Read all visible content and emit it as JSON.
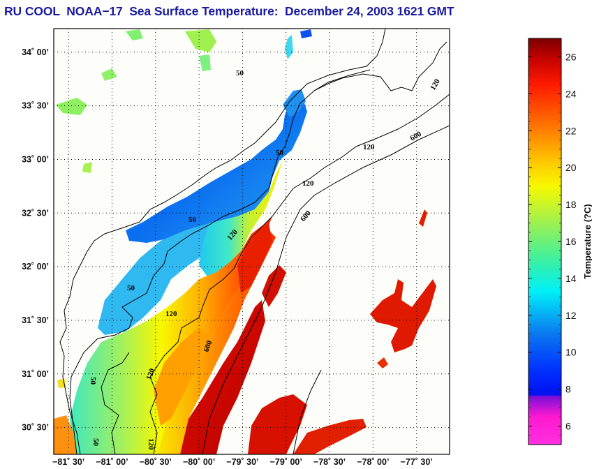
{
  "title": "RU COOL  NOAA−17  Sea Surface Temperature:  December 24, 2003 1621 GMT",
  "map": {
    "lat_ticks": [
      {
        "value": 34.0,
        "label": "34˚ 00’"
      },
      {
        "value": 33.5,
        "label": "33˚ 30’"
      },
      {
        "value": 33.0,
        "label": "33˚ 00’"
      },
      {
        "value": 32.5,
        "label": "32˚ 30’"
      },
      {
        "value": 32.0,
        "label": "32˚ 00’"
      },
      {
        "value": 31.5,
        "label": "31˚ 30’"
      },
      {
        "value": 31.0,
        "label": "31˚ 00’"
      },
      {
        "value": 30.5,
        "label": "30˚ 30’"
      }
    ],
    "lon_ticks": [
      {
        "value": -81.5,
        "label": "−81˚ 30’"
      },
      {
        "value": -81.0,
        "label": "−81˚ 00’"
      },
      {
        "value": -80.5,
        "label": "−80˚ 30’"
      },
      {
        "value": -80.0,
        "label": "−80˚ 00’"
      },
      {
        "value": -79.5,
        "label": "−79˚ 30’"
      },
      {
        "value": -79.0,
        "label": "−79˚ 00’"
      },
      {
        "value": -78.5,
        "label": "−78˚ 30’"
      },
      {
        "value": -78.0,
        "label": "−78˚ 00’"
      },
      {
        "value": -77.5,
        "label": "−77˚ 30’"
      }
    ],
    "lat_range": [
      30.25,
      34.22
    ],
    "lon_range": [
      -81.67,
      -77.12
    ],
    "contour_labels": [
      "50",
      "50",
      "50",
      "50",
      "50",
      "50",
      "120",
      "120",
      "120",
      "120",
      "120",
      "120",
      "120",
      "600",
      "600",
      "600"
    ]
  },
  "colorbar": {
    "label": "Temperature (?C)",
    "range": [
      5,
      27
    ],
    "ticks": [
      {
        "value": 26,
        "label": "26"
      },
      {
        "value": 24,
        "label": "24"
      },
      {
        "value": 22,
        "label": "22"
      },
      {
        "value": 20,
        "label": "20"
      },
      {
        "value": 18,
        "label": "18"
      },
      {
        "value": 16,
        "label": "16"
      },
      {
        "value": 14,
        "label": "14"
      },
      {
        "value": 12,
        "label": "12"
      },
      {
        "value": 10,
        "label": "10"
      },
      {
        "value": 8,
        "label": "8"
      },
      {
        "value": 6,
        "label": "6"
      }
    ],
    "minor_ticks": [
      5.5,
      6.5,
      7,
      7.5,
      8.5,
      9,
      9.5,
      10.5,
      11,
      11.5,
      12.5,
      13,
      13.5,
      14.5,
      15,
      15.5,
      16.5,
      17,
      17.5,
      18.5,
      19,
      19.5,
      20.5,
      21,
      21.5,
      22.5,
      23,
      23.5,
      24.5,
      25,
      25.5,
      26.5
    ],
    "stops": [
      {
        "value": 5,
        "color": "#ff30e0"
      },
      {
        "value": 6.5,
        "color": "#ff18d0"
      },
      {
        "value": 7.6,
        "color": "#7a10d8"
      },
      {
        "value": 7.7,
        "color": "#0010f0"
      },
      {
        "value": 9,
        "color": "#0030ff"
      },
      {
        "value": 11,
        "color": "#0a78f0"
      },
      {
        "value": 13.3,
        "color": "#00f0f8"
      },
      {
        "value": 15,
        "color": "#3cf0a0"
      },
      {
        "value": 17,
        "color": "#9cf050"
      },
      {
        "value": 19,
        "color": "#f8f800"
      },
      {
        "value": 20.5,
        "color": "#ffc000"
      },
      {
        "value": 22.5,
        "color": "#ff6a00"
      },
      {
        "value": 24.5,
        "color": "#ff1a00"
      },
      {
        "value": 26,
        "color": "#c00000"
      },
      {
        "value": 27,
        "color": "#7a0000"
      }
    ]
  }
}
